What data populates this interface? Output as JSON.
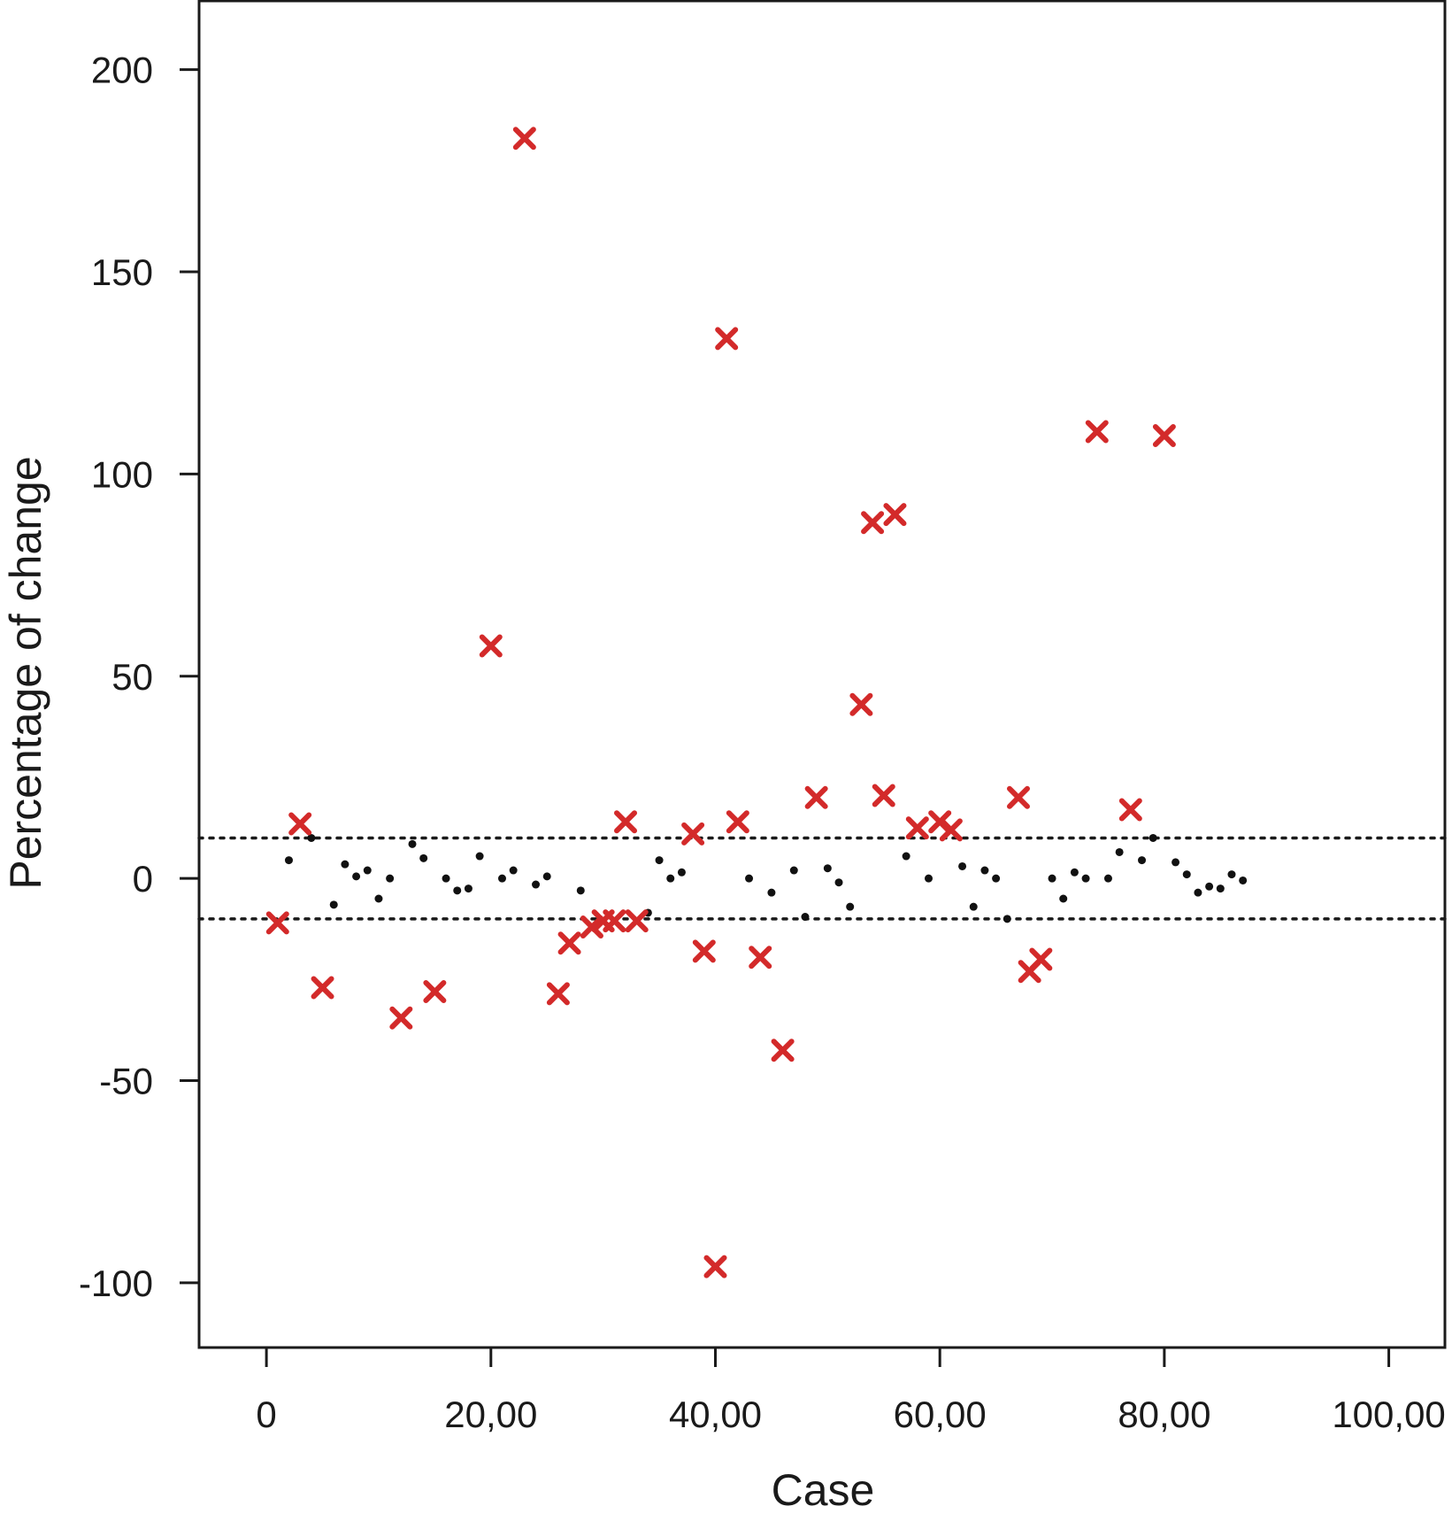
{
  "chart_data": {
    "type": "scatter",
    "xlabel": "Case",
    "ylabel": "Percentage of change",
    "xlim": [
      -6,
      105
    ],
    "ylim": [
      -116,
      217
    ],
    "x_ticks": [
      0,
      20,
      40,
      60,
      80,
      100
    ],
    "x_tick_labels": [
      "0",
      "20,00",
      "40,00",
      "60,00",
      "80,00",
      "100,00"
    ],
    "y_ticks": [
      -100,
      -50,
      0,
      50,
      100,
      150,
      200
    ],
    "y_tick_labels": [
      "-100",
      "-50",
      "0",
      "50",
      "100",
      "150",
      "200"
    ],
    "grid": false,
    "legend": "none",
    "reference_lines": [
      {
        "y": 10,
        "style": "dotted"
      },
      {
        "y": -10,
        "style": "dotted"
      }
    ],
    "series": [
      {
        "marker": "dot",
        "color": "#111111",
        "points": [
          [
            2,
            4.5
          ],
          [
            4,
            10
          ],
          [
            6,
            -6.5
          ],
          [
            7,
            3.5
          ],
          [
            8,
            0.5
          ],
          [
            9,
            2
          ],
          [
            10,
            -5
          ],
          [
            11,
            0
          ],
          [
            13,
            8.5
          ],
          [
            14,
            5
          ],
          [
            16,
            0
          ],
          [
            17,
            -3
          ],
          [
            18,
            -2.5
          ],
          [
            19,
            5.5
          ],
          [
            21,
            0
          ],
          [
            22,
            2
          ],
          [
            24,
            -1.5
          ],
          [
            25,
            0.5
          ],
          [
            28,
            -3
          ],
          [
            34,
            -8.5
          ],
          [
            35,
            4.5
          ],
          [
            36,
            0
          ],
          [
            37,
            1.5
          ],
          [
            43,
            0
          ],
          [
            45,
            -3.5
          ],
          [
            47,
            2
          ],
          [
            48,
            -9.5
          ],
          [
            50,
            2.5
          ],
          [
            51,
            -1
          ],
          [
            52,
            -7
          ],
          [
            57,
            5.5
          ],
          [
            59,
            0
          ],
          [
            62,
            3
          ],
          [
            63,
            -7
          ],
          [
            64,
            2
          ],
          [
            65,
            0
          ],
          [
            66,
            -10
          ],
          [
            70,
            0
          ],
          [
            71,
            -5
          ],
          [
            72,
            1.5
          ],
          [
            73,
            0
          ],
          [
            75,
            0
          ],
          [
            76,
            6.5
          ],
          [
            78,
            4.5
          ],
          [
            79,
            10
          ],
          [
            81,
            4
          ],
          [
            82,
            1
          ],
          [
            83,
            -3.5
          ],
          [
            84,
            -2
          ],
          [
            85,
            -2.5
          ],
          [
            86,
            1
          ],
          [
            87,
            -0.5
          ]
        ]
      },
      {
        "marker": "x",
        "color": "#d32a2a",
        "points": [
          [
            1,
            -11
          ],
          [
            3,
            13.5
          ],
          [
            5,
            -27
          ],
          [
            12,
            -34.5
          ],
          [
            15,
            -28
          ],
          [
            20,
            57.5
          ],
          [
            23,
            183
          ],
          [
            26,
            -28.5
          ],
          [
            27,
            -16
          ],
          [
            29,
            -12
          ],
          [
            30,
            -10.5
          ],
          [
            31,
            -10.5
          ],
          [
            32,
            14
          ],
          [
            33,
            -10.5
          ],
          [
            38,
            11
          ],
          [
            39,
            -18
          ],
          [
            40,
            -96
          ],
          [
            41,
            133.5
          ],
          [
            42,
            14
          ],
          [
            44,
            -19.5
          ],
          [
            46,
            -42.5
          ],
          [
            49,
            20
          ],
          [
            53,
            43
          ],
          [
            54,
            88
          ],
          [
            55,
            20.5
          ],
          [
            56,
            90
          ],
          [
            58,
            12.5
          ],
          [
            60,
            14
          ],
          [
            61,
            12
          ],
          [
            67,
            20
          ],
          [
            68,
            -23
          ],
          [
            69,
            -20
          ],
          [
            74,
            110.5
          ],
          [
            77,
            17
          ],
          [
            80,
            109.5
          ]
        ]
      }
    ]
  }
}
